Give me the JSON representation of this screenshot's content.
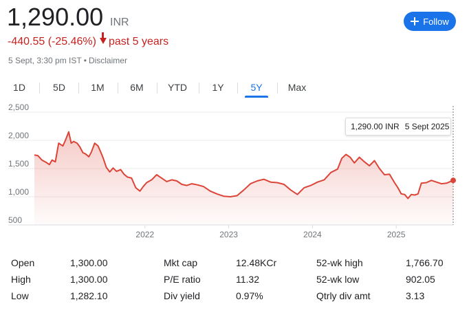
{
  "header": {
    "price": "1,290.00",
    "currency": "INR",
    "change": "-440.55 (-25.46%)",
    "period": "past 5 years",
    "timestamp": "5 Sept, 3:30 pm IST",
    "separator": "•",
    "disclaimer": "Disclaimer",
    "follow_label": "Follow"
  },
  "tabs": [
    "1D",
    "5D",
    "1M",
    "6M",
    "YTD",
    "1Y",
    "5Y",
    "Max"
  ],
  "active_tab": "5Y",
  "tooltip": {
    "price": "1,290.00 INR",
    "date": "5 Sept 2025"
  },
  "colors": {
    "line": "#db4437",
    "accent": "#1a73e8",
    "negative": "#c5221f"
  },
  "chart_data": {
    "type": "area",
    "y_ticks": [
      "2,500",
      "2,000",
      "1,500",
      "1,000",
      "500"
    ],
    "ylim": [
      500,
      2500
    ],
    "x_ticks": [
      "2022",
      "2023",
      "2024",
      "2025"
    ],
    "x_tick_values": [
      2022.0,
      2023.0,
      2024.0,
      2025.0
    ],
    "xlim": [
      2020.68,
      2025.68
    ],
    "grid": true,
    "series": [
      {
        "x": [
          2020.68,
          2020.72,
          2020.77,
          2020.82,
          2020.86,
          2020.89,
          2020.93,
          2020.97,
          2021.02,
          2021.05,
          2021.09,
          2021.12,
          2021.15,
          2021.19,
          2021.22,
          2021.26,
          2021.29,
          2021.33,
          2021.36,
          2021.4,
          2021.44,
          2021.47,
          2021.5,
          2021.54,
          2021.58,
          2021.62,
          2021.66,
          2021.71,
          2021.75,
          2021.79,
          2021.84,
          2021.89,
          2021.94,
          2021.98,
          2022.02,
          2022.08,
          2022.14,
          2022.2,
          2022.26,
          2022.32,
          2022.38,
          2022.44,
          2022.5,
          2022.56,
          2022.63,
          2022.7,
          2022.78,
          2022.86,
          2022.94,
          2023.02,
          2023.1,
          2023.18,
          2023.26,
          2023.34,
          2023.42,
          2023.5,
          2023.58,
          2023.66,
          2023.74,
          2023.82,
          2023.9,
          2023.98,
          2024.06,
          2024.14,
          2024.22,
          2024.3,
          2024.35,
          2024.4,
          2024.45,
          2024.5,
          2024.56,
          2024.62,
          2024.68,
          2024.74,
          2024.8,
          2024.86,
          2024.92,
          2024.98,
          2025.02,
          2025.06,
          2025.1,
          2025.14,
          2025.18,
          2025.22,
          2025.26,
          2025.3,
          2025.36,
          2025.42,
          2025.48,
          2025.54,
          2025.6,
          2025.68
        ],
        "y": [
          1740,
          1730,
          1650,
          1610,
          1570,
          1650,
          1620,
          1950,
          1900,
          2000,
          2150,
          1950,
          1980,
          1950,
          1890,
          1780,
          1760,
          1710,
          1790,
          1950,
          1900,
          1800,
          1690,
          1520,
          1440,
          1510,
          1450,
          1480,
          1400,
          1350,
          1330,
          1160,
          1100,
          1180,
          1250,
          1300,
          1390,
          1330,
          1270,
          1300,
          1280,
          1220,
          1200,
          1230,
          1210,
          1180,
          1100,
          1050,
          1010,
          1000,
          1020,
          1120,
          1230,
          1280,
          1310,
          1260,
          1250,
          1220,
          1120,
          1040,
          1160,
          1200,
          1260,
          1300,
          1430,
          1490,
          1680,
          1750,
          1700,
          1600,
          1700,
          1620,
          1550,
          1640,
          1500,
          1390,
          1400,
          1250,
          1160,
          1050,
          1040,
          970,
          1040,
          1030,
          1050,
          1240,
          1250,
          1290,
          1260,
          1230,
          1240,
          1290
        ]
      }
    ]
  },
  "stats": [
    {
      "label": "Open",
      "value": "1,300.00"
    },
    {
      "label": "High",
      "value": "1,300.00"
    },
    {
      "label": "Low",
      "value": "1,282.10"
    },
    {
      "label": "Mkt cap",
      "value": "12.48KCr"
    },
    {
      "label": "P/E ratio",
      "value": "11.32"
    },
    {
      "label": "Div yield",
      "value": "0.97%"
    },
    {
      "label": "52-wk high",
      "value": "1,766.70"
    },
    {
      "label": "52-wk low",
      "value": "902.05"
    },
    {
      "label": "Qtrly div amt",
      "value": "3.13"
    }
  ]
}
